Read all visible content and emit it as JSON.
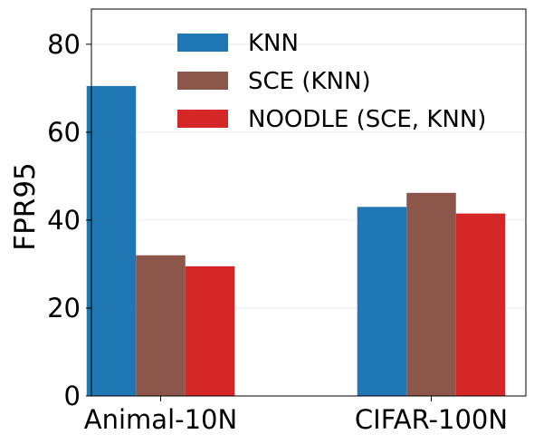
{
  "chart_data": {
    "type": "bar",
    "title": "",
    "xlabel": "",
    "ylabel": "FPR95",
    "categories": [
      "Animal-10N",
      "CIFAR-100N"
    ],
    "series": [
      {
        "name": "KNN",
        "color": "#1f77b4",
        "values": [
          70.5,
          43.0
        ]
      },
      {
        "name": "SCE (KNN)",
        "color": "#8c564b",
        "values": [
          32.0,
          46.2
        ]
      },
      {
        "name": "NOODLE (SCE, KNN)",
        "color": "#d62728",
        "values": [
          29.5,
          41.5
        ]
      }
    ],
    "ylim": [
      0,
      88
    ],
    "yticks": [
      "0",
      "20",
      "40",
      "60",
      "80"
    ],
    "grid": "horizontal, light",
    "legend": "top-center"
  }
}
